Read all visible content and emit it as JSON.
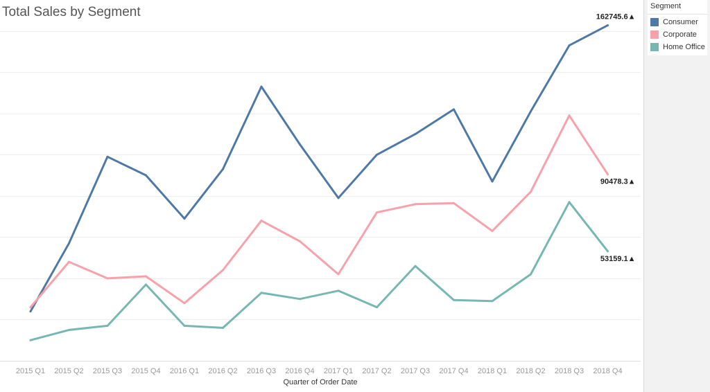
{
  "title": "Total Sales by Segment",
  "legend": {
    "title": "Segment",
    "items": [
      {
        "label": "Consumer",
        "color": "#4e79a7"
      },
      {
        "label": "Corporate",
        "color": "#f7a1aa"
      },
      {
        "label": "Home Office",
        "color": "#76b7b2"
      }
    ]
  },
  "chart_data": {
    "type": "line",
    "title": "Total Sales by Segment",
    "xlabel": "Quarter of Order Date",
    "ylabel": "",
    "ylim": [
      0,
      170000
    ],
    "grid": true,
    "legend_position": "right",
    "categories": [
      "2015 Q1",
      "2015 Q2",
      "2015 Q3",
      "2015 Q4",
      "2016 Q1",
      "2016 Q2",
      "2016 Q3",
      "2016 Q4",
      "2017 Q1",
      "2017 Q2",
      "2017 Q3",
      "2017 Q4",
      "2018 Q1",
      "2018 Q2",
      "2018 Q3",
      "2018 Q4"
    ],
    "series": [
      {
        "name": "Consumer",
        "color": "#4e79a7",
        "values": [
          24000,
          57000,
          99000,
          90000,
          69000,
          93000,
          133000,
          105000,
          79000,
          100000,
          110000,
          122000,
          87000,
          121000,
          153000,
          162745.6
        ],
        "end_label": "162745.6▲"
      },
      {
        "name": "Corporate",
        "color": "#f7a1aa",
        "values": [
          26000,
          48000,
          40000,
          41000,
          28000,
          44000,
          68000,
          58000,
          42000,
          72000,
          76000,
          76500,
          63000,
          82000,
          119000,
          90478.3
        ],
        "end_label": "90478.3▲"
      },
      {
        "name": "Home Office",
        "color": "#76b7b2",
        "values": [
          10000,
          15000,
          17000,
          37000,
          17000,
          16000,
          33000,
          30000,
          34000,
          26000,
          46000,
          29500,
          29000,
          42000,
          77000,
          53159.1
        ],
        "end_label": "53159.1▲"
      }
    ]
  }
}
